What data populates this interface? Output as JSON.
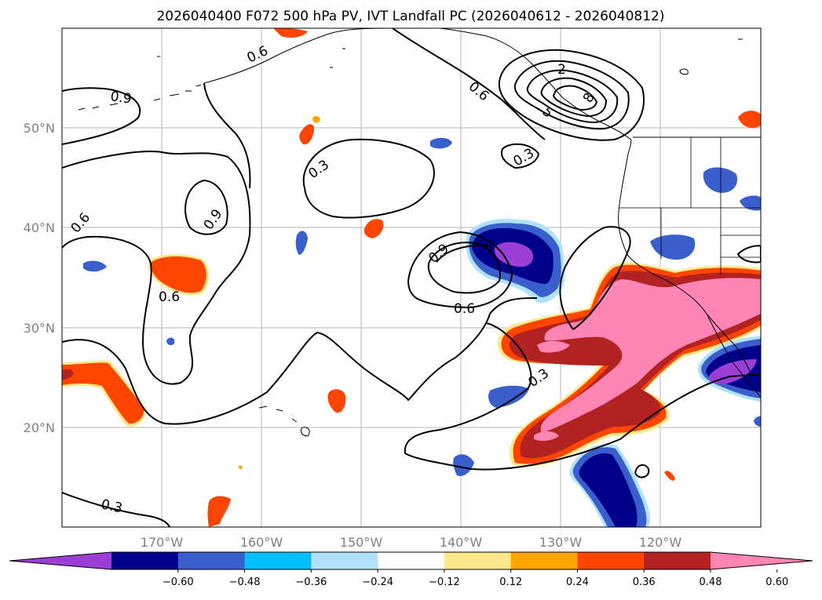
{
  "title": "2026040400 F072 500 hPa PV, IVT Landfall PC (2026040612 - 2026040812)",
  "map": {
    "lat_ticks": [
      "50°N",
      "40°N",
      "30°N",
      "20°N"
    ],
    "lon_ticks": [
      "170°W",
      "160°W",
      "150°W",
      "140°W",
      "130°W",
      "120°W"
    ],
    "gridlines": true
  },
  "contour_labels": [
    "0.9",
    "0.6",
    "0.6",
    "0.9",
    "0.6",
    "0.3",
    "0.9",
    "0.6",
    "0.3",
    "0.3",
    "0.3",
    "0.6",
    "2",
    "8",
    "5"
  ],
  "colorbar": {
    "ticks": [
      "−0.60",
      "−0.48",
      "−0.36",
      "−0.24",
      "−0.12",
      "0.12",
      "0.24",
      "0.36",
      "0.48",
      "0.60"
    ],
    "colors": [
      "#9a3ed6",
      "#00008b",
      "#3a5fcd",
      "#00bfff",
      "#b0e2ff",
      "#ffffff",
      "#fde98c",
      "#ffa500",
      "#ff4500",
      "#b22222",
      "#ff85b4"
    ]
  }
}
